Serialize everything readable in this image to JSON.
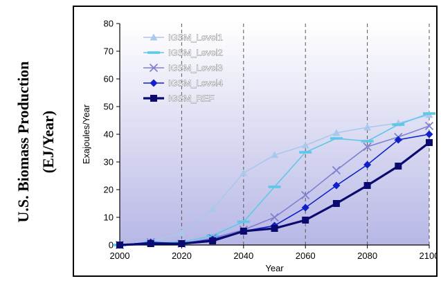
{
  "outer_title": {
    "line1": "U.S. Biomass Production",
    "line2": "(EJ/Year)"
  },
  "chart_data": {
    "type": "line",
    "xlabel": "Year",
    "ylabel": "Exajoules/Year",
    "xlim": [
      2000,
      2100
    ],
    "ylim": [
      0,
      80
    ],
    "x_ticks": [
      2000,
      2020,
      2040,
      2060,
      2080,
      2100
    ],
    "y_ticks": [
      0,
      10,
      20,
      30,
      40,
      50,
      60,
      70,
      80
    ],
    "x": [
      2000,
      2010,
      2020,
      2030,
      2040,
      2050,
      2060,
      2070,
      2080,
      2090,
      2100
    ],
    "grid": "vertical dashed",
    "legend": "upper-left",
    "plot_background": [
      "#ffffff",
      "#b7b7e6"
    ],
    "series": [
      {
        "name": "IGSM_Level1",
        "marker": "triangle",
        "color": "#a9c8ea",
        "values": [
          0,
          1.2,
          4.3,
          13,
          26,
          32.5,
          36,
          40.5,
          42.5,
          44,
          47
        ]
      },
      {
        "name": "IGSM_Level2",
        "marker": "dash",
        "color": "#5ec8e6",
        "values": [
          0,
          1,
          1,
          3.4,
          8.4,
          21,
          33.5,
          38.5,
          37.5,
          43.5,
          47.5
        ]
      },
      {
        "name": "IGSM_Level3",
        "marker": "x",
        "color": "#8080d0",
        "values": [
          0,
          1,
          0.5,
          2.5,
          5.5,
          10,
          18,
          27,
          35.5,
          39,
          43
        ]
      },
      {
        "name": "IGSM_Level4",
        "marker": "diamond",
        "color": "#1020c8",
        "values": [
          0,
          1,
          0.5,
          2,
          5,
          7,
          13.5,
          21.5,
          29,
          38,
          40
        ]
      },
      {
        "name": "IGSM_REF",
        "marker": "square",
        "color": "#0a0a70",
        "values": [
          0,
          0.5,
          0.5,
          1.5,
          5,
          6,
          9,
          15,
          21.5,
          28.5,
          37
        ]
      }
    ]
  }
}
